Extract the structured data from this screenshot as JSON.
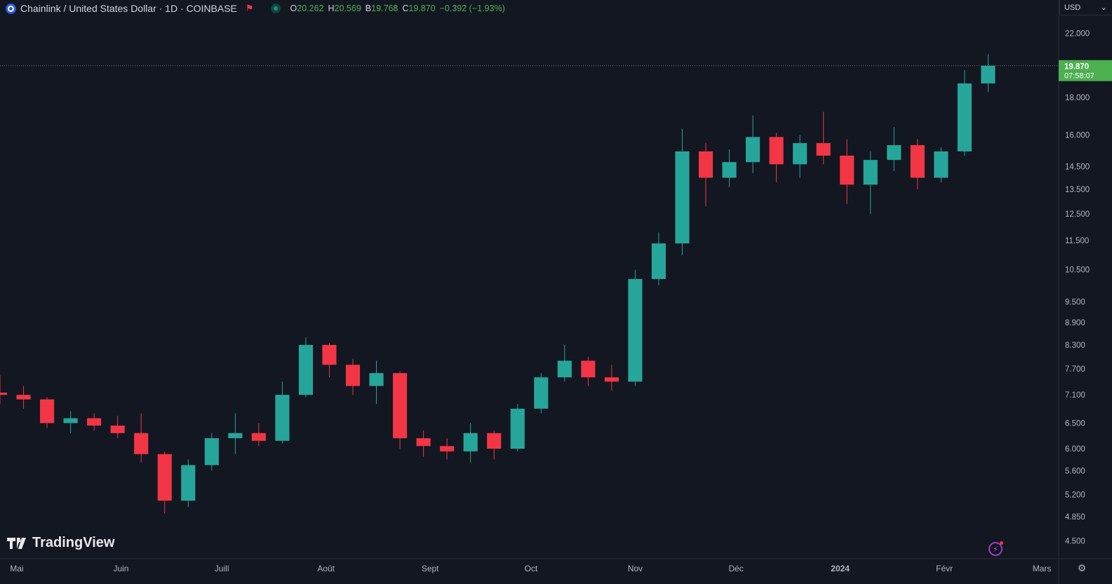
{
  "header": {
    "title": "Chainlink / United States Dollar · 1D · COINBASE",
    "open_key": "O",
    "open": "20.262",
    "high_key": "H",
    "high": "20.569",
    "low_key": "B",
    "low": "19.768",
    "close_key": "C",
    "close": "19.870",
    "change": "−0.392 (−1.93%)"
  },
  "currency": "USD",
  "logo_text": "TradingView",
  "price_tag": {
    "price": "19.870",
    "countdown": "07:58:07"
  },
  "colors": {
    "up": "#26a69a",
    "down": "#f23645",
    "background": "#131722",
    "tag": "#4caf50"
  },
  "icons": [
    "chainlink-icon",
    "flag-icon",
    "market-status-icon",
    "lightning-icon",
    "settings-icon",
    "tradingview-logo-icon"
  ],
  "chart_data": {
    "type": "candlestick",
    "y_scale": "log",
    "ylim": [
      4.3,
      23
    ],
    "y_ticks": [
      "22.000",
      "18.000",
      "16.000",
      "14.500",
      "13.500",
      "12.500",
      "11.500",
      "10.500",
      "9.500",
      "8.900",
      "8.300",
      "7.700",
      "7.100",
      "6.500",
      "6.000",
      "5.600",
      "5.200",
      "4.850",
      "4.500"
    ],
    "x_ticks": [
      "Mai",
      "Juin",
      "Juill",
      "Août",
      "Sept",
      "Oct",
      "Nov",
      "Déc",
      "2024",
      "Févr",
      "Mars"
    ],
    "x_range": [
      "2023-04-26",
      "2024-03-06"
    ],
    "last_price": 19.87,
    "candles": [
      [
        "2023-04-26",
        7.15,
        7.55,
        6.9,
        7.1
      ],
      [
        "2023-05-03",
        7.1,
        7.3,
        6.8,
        7.0
      ],
      [
        "2023-05-10",
        7.0,
        7.05,
        6.4,
        6.5
      ],
      [
        "2023-05-17",
        6.5,
        6.75,
        6.3,
        6.6
      ],
      [
        "2023-05-24",
        6.6,
        6.7,
        6.35,
        6.45
      ],
      [
        "2023-05-31",
        6.45,
        6.65,
        6.2,
        6.3
      ],
      [
        "2023-06-07",
        6.3,
        6.7,
        5.75,
        5.9
      ],
      [
        "2023-06-14",
        5.9,
        5.95,
        4.9,
        5.1
      ],
      [
        "2023-06-21",
        5.1,
        5.8,
        5.0,
        5.7
      ],
      [
        "2023-06-28",
        5.7,
        6.3,
        5.6,
        6.2
      ],
      [
        "2023-07-05",
        6.2,
        6.7,
        5.9,
        6.3
      ],
      [
        "2023-07-12",
        6.3,
        6.5,
        6.05,
        6.15
      ],
      [
        "2023-07-19",
        6.15,
        7.4,
        6.1,
        7.1
      ],
      [
        "2023-07-26",
        7.1,
        8.5,
        7.05,
        8.3
      ],
      [
        "2023-08-02",
        8.3,
        8.35,
        7.5,
        7.8
      ],
      [
        "2023-08-09",
        7.8,
        7.95,
        7.1,
        7.3
      ],
      [
        "2023-08-16",
        7.3,
        7.9,
        6.9,
        7.6
      ],
      [
        "2023-08-23",
        7.6,
        7.65,
        6.0,
        6.2
      ],
      [
        "2023-08-30",
        6.2,
        6.35,
        5.85,
        6.05
      ],
      [
        "2023-09-06",
        6.05,
        6.2,
        5.8,
        5.95
      ],
      [
        "2023-09-13",
        5.95,
        6.5,
        5.75,
        6.3
      ],
      [
        "2023-09-20",
        6.3,
        6.35,
        5.8,
        6.0
      ],
      [
        "2023-09-27",
        6.0,
        6.9,
        5.95,
        6.8
      ],
      [
        "2023-10-04",
        6.8,
        7.6,
        6.7,
        7.5
      ],
      [
        "2023-10-11",
        7.5,
        8.3,
        7.4,
        7.9
      ],
      [
        "2023-10-18",
        7.9,
        8.0,
        7.3,
        7.5
      ],
      [
        "2023-10-25",
        7.5,
        7.8,
        7.2,
        7.4
      ],
      [
        "2023-11-01",
        7.4,
        10.5,
        7.3,
        10.2
      ],
      [
        "2023-11-08",
        10.2,
        11.8,
        10.0,
        11.4
      ],
      [
        "2023-11-15",
        11.4,
        16.3,
        11.0,
        15.2
      ],
      [
        "2023-11-22",
        15.2,
        15.6,
        12.8,
        14.0
      ],
      [
        "2023-11-29",
        14.0,
        15.3,
        13.6,
        14.7
      ],
      [
        "2023-12-06",
        14.7,
        17.0,
        14.2,
        15.9
      ],
      [
        "2023-12-13",
        15.9,
        16.1,
        13.8,
        14.6
      ],
      [
        "2023-12-20",
        14.6,
        16.0,
        14.0,
        15.6
      ],
      [
        "2023-12-27",
        15.6,
        17.2,
        14.6,
        15.0
      ],
      [
        "2024-01-03",
        15.0,
        15.8,
        12.9,
        13.7
      ],
      [
        "2024-01-10",
        13.7,
        15.2,
        12.5,
        14.8
      ],
      [
        "2024-01-17",
        14.8,
        16.4,
        14.3,
        15.5
      ],
      [
        "2024-01-24",
        15.5,
        15.8,
        13.5,
        14.0
      ],
      [
        "2024-01-31",
        14.0,
        15.4,
        13.8,
        15.2
      ],
      [
        "2024-02-07",
        15.2,
        19.6,
        15.0,
        18.8
      ],
      [
        "2024-02-14",
        18.8,
        20.6,
        18.3,
        19.87
      ]
    ]
  }
}
